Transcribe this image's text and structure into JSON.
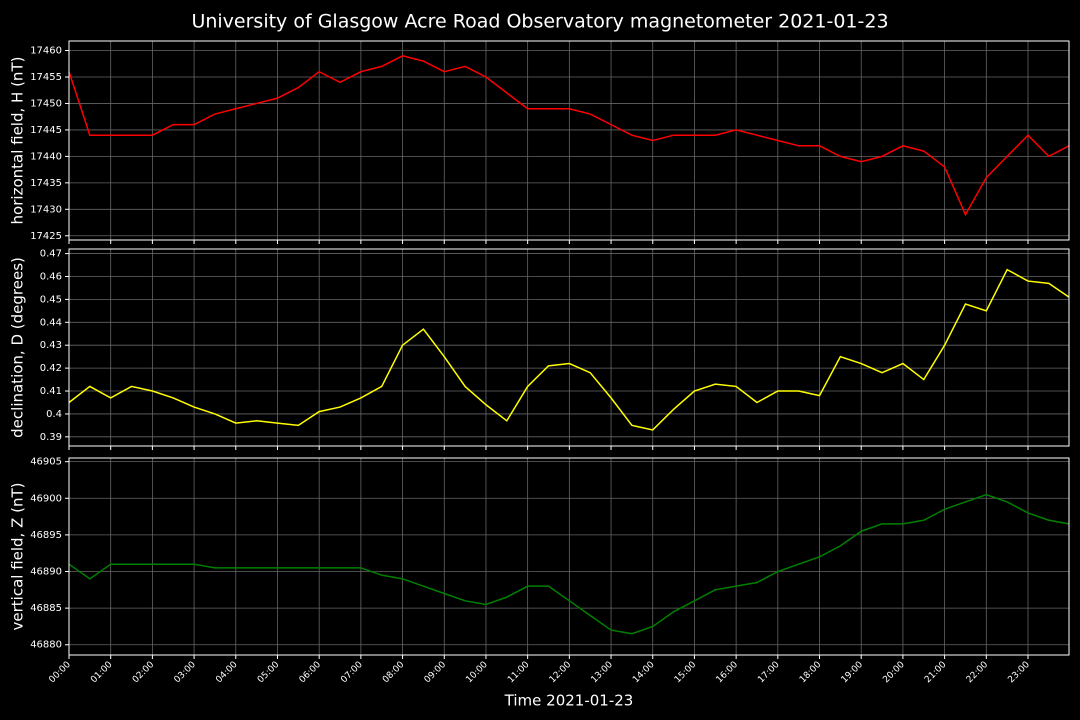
{
  "title": "University of Glasgow Acre Road Observatory magnetometer 2021-01-23",
  "chart_data": [
    {
      "type": "line",
      "ylabel": "horizontal field, H (nT)",
      "color": "#ff0000",
      "x": [
        "00:00",
        "00:30",
        "01:00",
        "01:30",
        "02:00",
        "02:30",
        "03:00",
        "03:30",
        "04:00",
        "04:30",
        "05:00",
        "05:30",
        "06:00",
        "06:30",
        "07:00",
        "07:30",
        "08:00",
        "08:30",
        "09:00",
        "09:30",
        "10:00",
        "10:30",
        "11:00",
        "11:30",
        "12:00",
        "12:30",
        "13:00",
        "13:30",
        "14:00",
        "14:30",
        "15:00",
        "15:30",
        "16:00",
        "16:30",
        "17:00",
        "17:30",
        "18:00",
        "18:30",
        "19:00",
        "19:30",
        "20:00",
        "20:30",
        "21:00",
        "21:30",
        "22:00",
        "22:30",
        "23:00",
        "23:30",
        "23:59"
      ],
      "values": [
        17456,
        17444,
        17444,
        17444,
        17444,
        17446,
        17446,
        17448,
        17449,
        17450,
        17451,
        17453,
        17456,
        17454,
        17456,
        17457,
        17459,
        17458,
        17456,
        17457,
        17455,
        17452,
        17449,
        17449,
        17449,
        17448,
        17446,
        17444,
        17443,
        17444,
        17444,
        17444,
        17445,
        17444,
        17443,
        17442,
        17442,
        17440,
        17439,
        17440,
        17442,
        17441,
        17438,
        17429,
        17436,
        17440,
        17444,
        17440,
        17442
      ],
      "xlim": [
        "00:00",
        "23:59"
      ],
      "xticks": [
        "00:00",
        "01:00",
        "02:00",
        "03:00",
        "04:00",
        "05:00",
        "06:00",
        "07:00",
        "08:00",
        "09:00",
        "10:00",
        "11:00",
        "12:00",
        "13:00",
        "14:00",
        "15:00",
        "16:00",
        "17:00",
        "18:00",
        "19:00",
        "20:00",
        "21:00",
        "22:00",
        "23:00"
      ],
      "ylim": [
        17424.2,
        17461.8
      ],
      "yticks": [
        17425,
        17430,
        17435,
        17440,
        17445,
        17450,
        17455,
        17460
      ],
      "grid": true
    },
    {
      "type": "line",
      "ylabel": "declination, D (degrees)",
      "color": "#ffff00",
      "x": [
        "00:00",
        "00:30",
        "01:00",
        "01:30",
        "02:00",
        "02:30",
        "03:00",
        "03:30",
        "04:00",
        "04:30",
        "05:00",
        "05:30",
        "06:00",
        "06:30",
        "07:00",
        "07:30",
        "08:00",
        "08:30",
        "09:00",
        "09:30",
        "10:00",
        "10:30",
        "11:00",
        "11:30",
        "12:00",
        "12:30",
        "13:00",
        "13:30",
        "14:00",
        "14:30",
        "15:00",
        "15:30",
        "16:00",
        "16:30",
        "17:00",
        "17:30",
        "18:00",
        "18:30",
        "19:00",
        "19:30",
        "20:00",
        "20:30",
        "21:00",
        "21:30",
        "22:00",
        "22:30",
        "23:00",
        "23:30",
        "23:59"
      ],
      "values": [
        0.405,
        0.412,
        0.407,
        0.412,
        0.41,
        0.407,
        0.403,
        0.4,
        0.396,
        0.397,
        0.396,
        0.395,
        0.401,
        0.403,
        0.407,
        0.412,
        0.43,
        0.437,
        0.425,
        0.412,
        0.404,
        0.397,
        0.412,
        0.421,
        0.422,
        0.418,
        0.407,
        0.395,
        0.393,
        0.402,
        0.41,
        0.413,
        0.412,
        0.405,
        0.41,
        0.41,
        0.408,
        0.425,
        0.422,
        0.418,
        0.422,
        0.415,
        0.43,
        0.448,
        0.445,
        0.463,
        0.458,
        0.457,
        0.451
      ],
      "xlim": [
        "00:00",
        "23:59"
      ],
      "xticks": [
        "00:00",
        "01:00",
        "02:00",
        "03:00",
        "04:00",
        "05:00",
        "06:00",
        "07:00",
        "08:00",
        "09:00",
        "10:00",
        "11:00",
        "12:00",
        "13:00",
        "14:00",
        "15:00",
        "16:00",
        "17:00",
        "18:00",
        "19:00",
        "20:00",
        "21:00",
        "22:00",
        "23:00"
      ],
      "ylim": [
        0.386,
        0.472
      ],
      "yticks": [
        0.39,
        0.4,
        0.41,
        0.42,
        0.43,
        0.44,
        0.45,
        0.46,
        0.47
      ],
      "grid": true
    },
    {
      "type": "line",
      "ylabel": "vertical field, Z (nT)",
      "color": "#008000",
      "xlabel": "Time 2021-01-23",
      "x": [
        "00:00",
        "00:30",
        "01:00",
        "01:30",
        "02:00",
        "02:30",
        "03:00",
        "03:30",
        "04:00",
        "04:30",
        "05:00",
        "05:30",
        "06:00",
        "06:30",
        "07:00",
        "07:30",
        "08:00",
        "08:30",
        "09:00",
        "09:30",
        "10:00",
        "10:30",
        "11:00",
        "11:30",
        "12:00",
        "12:30",
        "13:00",
        "13:30",
        "14:00",
        "14:30",
        "15:00",
        "15:30",
        "16:00",
        "16:30",
        "17:00",
        "17:30",
        "18:00",
        "18:30",
        "19:00",
        "19:30",
        "20:00",
        "20:30",
        "21:00",
        "21:30",
        "22:00",
        "22:30",
        "23:00",
        "23:30",
        "23:59"
      ],
      "values": [
        46891,
        46889,
        46891,
        46891,
        46891,
        46891,
        46891,
        46890.5,
        46890.5,
        46890.5,
        46890.5,
        46890.5,
        46890.5,
        46890.5,
        46890.5,
        46889.5,
        46889,
        46888,
        46887,
        46886,
        46885.5,
        46886.5,
        46888,
        46888,
        46886,
        46884,
        46882,
        46881.5,
        46882.5,
        46884.5,
        46886,
        46887.5,
        46888,
        46888.5,
        46890,
        46891,
        46892,
        46893.5,
        46895.5,
        46896.5,
        46896.5,
        46897,
        46898.5,
        46899.5,
        46900.5,
        46899.5,
        46898,
        46897,
        46896.5
      ],
      "xlim": [
        "00:00",
        "23:59"
      ],
      "xticks": [
        "00:00",
        "01:00",
        "02:00",
        "03:00",
        "04:00",
        "05:00",
        "06:00",
        "07:00",
        "08:00",
        "09:00",
        "10:00",
        "11:00",
        "12:00",
        "13:00",
        "14:00",
        "15:00",
        "16:00",
        "17:00",
        "18:00",
        "19:00",
        "20:00",
        "21:00",
        "22:00",
        "23:00"
      ],
      "ylim": [
        46878.6,
        46905.5
      ],
      "yticks": [
        46880,
        46885,
        46890,
        46895,
        46900,
        46905
      ],
      "grid": true
    }
  ]
}
